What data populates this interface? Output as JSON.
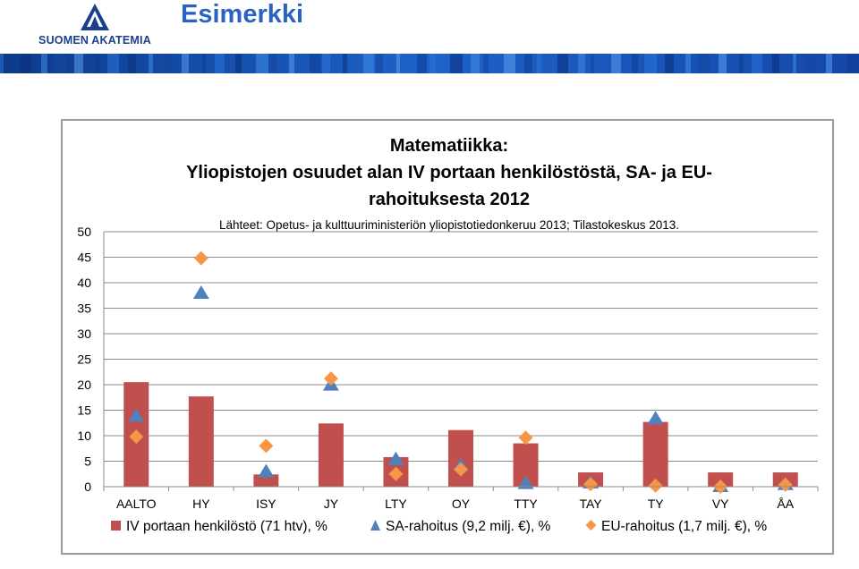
{
  "logo": {
    "text": "SUOMEN AKATEMIA",
    "color": "#1b3f8c"
  },
  "slide_title": "Esimerkki",
  "chart_data": {
    "type": "bar",
    "title_lines": [
      "Matematiikka:",
      "Yliopistojen osuudet alan IV portaan henkilöstöstä, SA- ja EU-",
      "rahoituksesta 2012"
    ],
    "subtitle": "Lähteet: Opetus- ja kulttuuriministeriön yliopistotiedonkeruu 2013; Tilastokeskus 2013.",
    "categories": [
      "AALTO",
      "HY",
      "ISY",
      "JY",
      "LTY",
      "OY",
      "TTY",
      "TAY",
      "TY",
      "VY",
      "ÅA"
    ],
    "ylim": [
      0,
      50
    ],
    "yticks": [
      0,
      5,
      10,
      15,
      20,
      25,
      30,
      35,
      40,
      45,
      50
    ],
    "grid": true,
    "legend_position": "bottom",
    "series": [
      {
        "name": "IV portaan henkilöstö (71 htv), %",
        "kind": "bar",
        "color": "#c0504d",
        "values": [
          20.5,
          17.7,
          2.4,
          12.4,
          5.8,
          11.1,
          8.5,
          2.8,
          12.7,
          2.8,
          2.8
        ]
      },
      {
        "name": "SA-rahoitus (9,2 milj. €), %",
        "kind": "triangle",
        "color": "#4f81bd",
        "values": [
          13.8,
          37.9,
          2.9,
          19.9,
          5.3,
          4.1,
          0.6,
          0.7,
          13.3,
          0.0,
          0.4
        ]
      },
      {
        "name": "EU-rahoitus (1,7 milj. €), %",
        "kind": "diamond",
        "color": "#f79646",
        "values": [
          9.8,
          44.8,
          8.0,
          21.2,
          2.5,
          3.4,
          9.6,
          0.5,
          0.2,
          0.0,
          0.4
        ]
      }
    ]
  }
}
